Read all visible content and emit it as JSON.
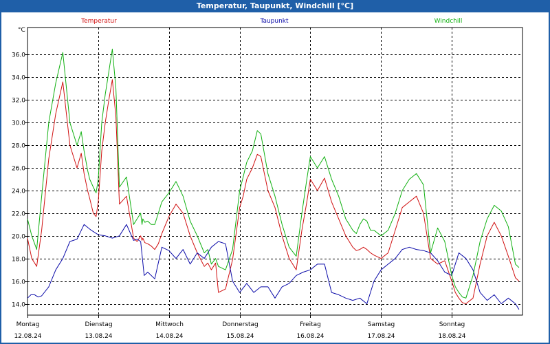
{
  "window": {
    "title": "Temperatur, Taupunkt, Windchill [°C]"
  },
  "colors": {
    "background": "#ffffff",
    "frame": "#1f5fa8",
    "grid": "#000000"
  },
  "chart_data": {
    "type": "line",
    "title": "Temperatur, Taupunkt, Windchill [°C]",
    "ylabel": "°C",
    "ylim": [
      13,
      38.4
    ],
    "yticks": [
      14.0,
      16.0,
      18.0,
      20.0,
      22.0,
      24.0,
      26.0,
      28.0,
      30.0,
      32.0,
      34.0,
      36.0
    ],
    "ytick_labels": [
      "14.0",
      "16.0",
      "18.0",
      "20.0",
      "22.0",
      "24.0",
      "26.0",
      "28.0",
      "30.0",
      "32.0",
      "34.0",
      "36.0"
    ],
    "xlim": [
      0,
      7
    ],
    "x_ticks": [
      {
        "x": 0,
        "day": "Montag",
        "date": "12.08.24"
      },
      {
        "x": 1,
        "day": "Dienstag",
        "date": "13.08.24"
      },
      {
        "x": 2,
        "day": "Mittwoch",
        "date": "14.08.24"
      },
      {
        "x": 3,
        "day": "Donnerstag",
        "date": "15.08.24"
      },
      {
        "x": 4,
        "day": "Freitag",
        "date": "16.08.24"
      },
      {
        "x": 5,
        "day": "Samstag",
        "date": "17.08.24"
      },
      {
        "x": 6,
        "day": "Sonntag",
        "date": "18.08.24"
      }
    ],
    "grid": true,
    "series": [
      {
        "name": "Temperatur",
        "color": "#d01010",
        "x": [
          0,
          0.06,
          0.13,
          0.2,
          0.3,
          0.4,
          0.5,
          0.6,
          0.7,
          0.76,
          0.8,
          0.85,
          0.88,
          0.93,
          0.97,
          1.0,
          1.05,
          1.1,
          1.15,
          1.2,
          1.25,
          1.3,
          1.4,
          1.5,
          1.55,
          1.6,
          1.62,
          1.63,
          1.66,
          1.7,
          1.75,
          1.8,
          1.85,
          1.9,
          2.0,
          2.1,
          2.2,
          2.3,
          2.4,
          2.5,
          2.55,
          2.6,
          2.66,
          2.7,
          2.8,
          2.9,
          3.0,
          3.05,
          3.1,
          3.18,
          3.25,
          3.3,
          3.4,
          3.5,
          3.6,
          3.7,
          3.8,
          3.88,
          3.95,
          4.0,
          4.1,
          4.2,
          4.3,
          4.4,
          4.5,
          4.55,
          4.6,
          4.65,
          4.7,
          4.75,
          4.8,
          4.85,
          4.9,
          5.0,
          5.1,
          5.2,
          5.3,
          5.4,
          5.5,
          5.6,
          5.7,
          5.8,
          5.9,
          6.0,
          6.05,
          6.1,
          6.15,
          6.2,
          6.3,
          6.4,
          6.5,
          6.6,
          6.7,
          6.8,
          6.9,
          6.95
        ],
        "values": [
          19.8,
          18.0,
          17.3,
          20.5,
          26.8,
          30.8,
          33.6,
          28.0,
          26.0,
          27.3,
          25.5,
          24.0,
          23.3,
          22.0,
          21.7,
          23.0,
          27.5,
          30.0,
          32.0,
          33.8,
          30.5,
          22.8,
          23.5,
          19.8,
          19.5,
          20.0,
          19.6,
          19.8,
          19.4,
          19.3,
          19.1,
          18.8,
          19.3,
          20.2,
          21.7,
          22.8,
          22.0,
          20.0,
          18.5,
          17.3,
          17.6,
          17.0,
          17.6,
          15.0,
          15.3,
          17.9,
          22.5,
          23.5,
          25.0,
          26.0,
          27.2,
          27.0,
          24.0,
          22.5,
          20.0,
          18.0,
          17.0,
          20.5,
          23.0,
          25.0,
          24.0,
          25.1,
          23.0,
          21.5,
          20.0,
          19.5,
          19.0,
          18.7,
          18.8,
          19.0,
          18.8,
          18.5,
          18.3,
          18.0,
          18.5,
          20.5,
          22.5,
          23.0,
          23.5,
          22.0,
          18.0,
          17.5,
          17.8,
          16.0,
          15.0,
          14.5,
          14.1,
          14.0,
          14.5,
          17.5,
          20.0,
          21.2,
          20.0,
          18.2,
          16.3,
          16.0
        ]
      },
      {
        "name": "Taupunkt",
        "color": "#0a0aa8",
        "x": [
          0,
          0.05,
          0.1,
          0.15,
          0.2,
          0.3,
          0.4,
          0.5,
          0.6,
          0.7,
          0.8,
          0.9,
          1.0,
          1.1,
          1.2,
          1.3,
          1.4,
          1.5,
          1.55,
          1.6,
          1.65,
          1.7,
          1.8,
          1.9,
          2.0,
          2.1,
          2.2,
          2.3,
          2.4,
          2.5,
          2.6,
          2.7,
          2.8,
          2.9,
          3.0,
          3.1,
          3.2,
          3.3,
          3.4,
          3.5,
          3.6,
          3.7,
          3.8,
          3.9,
          4.0,
          4.1,
          4.2,
          4.3,
          4.4,
          4.5,
          4.6,
          4.7,
          4.8,
          4.9,
          5.0,
          5.1,
          5.2,
          5.3,
          5.4,
          5.5,
          5.6,
          5.7,
          5.8,
          5.9,
          6.0,
          6.1,
          6.2,
          6.3,
          6.4,
          6.5,
          6.6,
          6.7,
          6.8,
          6.9,
          6.95
        ],
        "values": [
          14.5,
          14.8,
          14.8,
          14.6,
          14.7,
          15.5,
          17.0,
          18.0,
          19.5,
          19.7,
          21.0,
          20.5,
          20.1,
          20.0,
          19.8,
          20.0,
          21.0,
          19.6,
          19.7,
          19.5,
          16.5,
          16.8,
          16.2,
          19.0,
          18.7,
          18.0,
          18.8,
          17.5,
          18.5,
          18.0,
          19.0,
          19.5,
          19.3,
          16.0,
          15.0,
          15.8,
          15.0,
          15.5,
          15.5,
          14.5,
          15.5,
          15.8,
          16.5,
          16.8,
          17.0,
          17.5,
          17.5,
          15.0,
          14.8,
          14.5,
          14.3,
          14.5,
          14.0,
          16.0,
          17.0,
          17.5,
          18.0,
          18.8,
          19.0,
          18.8,
          18.7,
          18.5,
          17.8,
          16.8,
          16.5,
          18.5,
          18.0,
          17.0,
          15.0,
          14.3,
          14.8,
          14.0,
          14.5,
          14.0,
          13.5
        ]
      },
      {
        "name": "Windchill",
        "color": "#10b010",
        "x": [
          0,
          0.06,
          0.13,
          0.2,
          0.3,
          0.4,
          0.5,
          0.6,
          0.7,
          0.76,
          0.8,
          0.85,
          0.88,
          0.93,
          0.97,
          1.0,
          1.05,
          1.1,
          1.15,
          1.2,
          1.25,
          1.3,
          1.4,
          1.5,
          1.55,
          1.6,
          1.62,
          1.63,
          1.66,
          1.7,
          1.75,
          1.8,
          1.85,
          1.9,
          2.0,
          2.1,
          2.2,
          2.3,
          2.4,
          2.5,
          2.55,
          2.6,
          2.66,
          2.7,
          2.8,
          2.9,
          3.0,
          3.05,
          3.1,
          3.18,
          3.25,
          3.3,
          3.4,
          3.5,
          3.6,
          3.7,
          3.8,
          3.88,
          3.95,
          4.0,
          4.1,
          4.2,
          4.3,
          4.4,
          4.5,
          4.55,
          4.6,
          4.65,
          4.7,
          4.75,
          4.8,
          4.85,
          4.9,
          5.0,
          5.1,
          5.2,
          5.3,
          5.4,
          5.5,
          5.6,
          5.7,
          5.8,
          5.9,
          6.0,
          6.05,
          6.1,
          6.15,
          6.2,
          6.3,
          6.4,
          6.5,
          6.6,
          6.7,
          6.8,
          6.9,
          6.95
        ],
        "values": [
          21.5,
          20.0,
          18.8,
          23.5,
          30.0,
          33.5,
          36.2,
          30.0,
          28.0,
          29.2,
          27.5,
          25.8,
          25.0,
          24.3,
          23.8,
          25.0,
          30.0,
          32.5,
          34.5,
          36.5,
          33.0,
          24.3,
          25.2,
          21.0,
          21.5,
          22.0,
          21.0,
          21.5,
          21.2,
          21.3,
          21.0,
          21.0,
          22.0,
          23.0,
          23.8,
          24.8,
          23.5,
          21.3,
          20.0,
          18.5,
          18.8,
          17.5,
          18.0,
          17.3,
          17.0,
          18.8,
          24.0,
          25.2,
          26.5,
          27.5,
          29.3,
          29.0,
          25.5,
          23.5,
          21.0,
          19.0,
          18.2,
          22.0,
          25.0,
          27.0,
          26.0,
          27.0,
          25.0,
          23.5,
          21.5,
          21.0,
          20.5,
          20.2,
          21.0,
          21.5,
          21.3,
          20.5,
          20.5,
          20.0,
          20.5,
          22.0,
          24.0,
          25.0,
          25.5,
          24.5,
          18.5,
          20.7,
          19.5,
          16.5,
          15.5,
          15.0,
          14.6,
          14.5,
          16.5,
          19.5,
          21.5,
          22.7,
          22.2,
          20.8,
          17.5,
          17.2
        ]
      }
    ]
  }
}
